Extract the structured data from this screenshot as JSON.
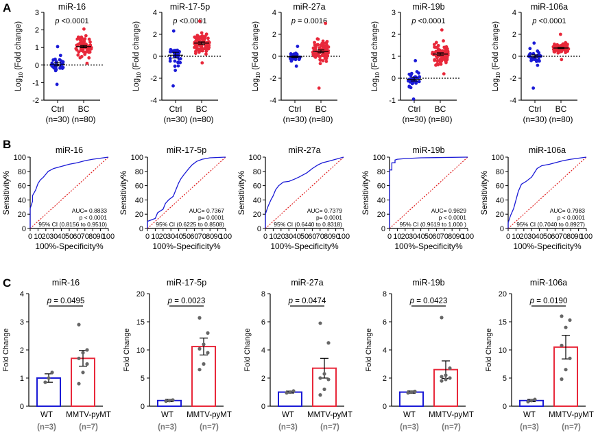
{
  "panels": {
    "A": "A",
    "B": "B",
    "C": "C"
  },
  "colors": {
    "blue": "#1a1ad6",
    "red": "#e8283a",
    "gray": "#666666",
    "refline": "#e02020",
    "axis": "#000000"
  },
  "chart_data": [
    {
      "type": "scatter",
      "panel": "A",
      "title": "miR-16",
      "ylabel": "Log10 (Fold change)",
      "ylim": [
        -2,
        3
      ],
      "yticks": [
        -2,
        -1,
        0,
        1,
        2,
        3
      ],
      "categories": [
        "Ctrl",
        "BC"
      ],
      "category_n": [
        "(n=30)",
        "(n=80)"
      ],
      "p_label": "p",
      "p_value": "<0.0001",
      "groups": [
        {
          "name": "Ctrl",
          "n": 30,
          "mean": 0.05,
          "spread": 0.42,
          "min": -1.1,
          "max": 1.05
        },
        {
          "name": "BC",
          "n": 80,
          "mean": 1.05,
          "spread": 0.48,
          "min": 0.1,
          "max": 2.05
        }
      ]
    },
    {
      "type": "scatter",
      "panel": "A",
      "title": "miR-17-5p",
      "ylabel": "Log10 (Fold change)",
      "ylim": [
        -4,
        4
      ],
      "yticks": [
        -4,
        -2,
        0,
        2,
        4
      ],
      "categories": [
        "Ctrl",
        "BC"
      ],
      "category_n": [
        "(n=30)",
        "(n=80)"
      ],
      "p_label": "p",
      "p_value": "<0.0001",
      "groups": [
        {
          "name": "Ctrl",
          "n": 30,
          "mean": 0.1,
          "spread": 1.2,
          "min": -2.7,
          "max": 2.3
        },
        {
          "name": "BC",
          "n": 80,
          "mean": 1.2,
          "spread": 0.85,
          "min": -0.6,
          "max": 3.2
        }
      ]
    },
    {
      "type": "scatter",
      "panel": "A",
      "title": "miR-27a",
      "ylabel": "Log10 (Fold change)",
      "ylim": [
        -4,
        4
      ],
      "yticks": [
        -4,
        -2,
        0,
        2,
        4
      ],
      "categories": [
        "Ctrl",
        "BC"
      ],
      "category_n": [
        "(n=30)",
        "(n=80)"
      ],
      "p_label": "p",
      "p_value": "= 0.0016",
      "groups": [
        {
          "name": "Ctrl",
          "n": 30,
          "mean": -0.05,
          "spread": 0.35,
          "min": -0.9,
          "max": 0.9
        },
        {
          "name": "BC",
          "n": 80,
          "mean": 0.45,
          "spread": 0.95,
          "min": -2.9,
          "max": 3.0
        }
      ]
    },
    {
      "type": "scatter",
      "panel": "A",
      "title": "miR-19b",
      "ylabel": "Log10 (Fold change)",
      "ylim": [
        -1,
        3
      ],
      "yticks": [
        -1,
        0,
        1,
        2,
        3
      ],
      "categories": [
        "Ctrl",
        "BC"
      ],
      "category_n": [
        "(n=30)",
        "(n=80)"
      ],
      "p_label": "p",
      "p_value": "<0.0001",
      "groups": [
        {
          "name": "Ctrl",
          "n": 30,
          "mean": -0.05,
          "spread": 0.35,
          "min": -0.95,
          "max": 0.8
        },
        {
          "name": "BC",
          "n": 80,
          "mean": 1.1,
          "spread": 0.45,
          "min": 0.2,
          "max": 2.2
        }
      ]
    },
    {
      "type": "scatter",
      "panel": "A",
      "title": "miR-106a",
      "ylabel": "Log10 (Fold change)",
      "ylim": [
        -4,
        4
      ],
      "yticks": [
        -4,
        -2,
        0,
        2,
        4
      ],
      "categories": [
        "Ctrl",
        "BC"
      ],
      "category_n": [
        "(n=30)",
        "(n=80)"
      ],
      "p_label": "p",
      "p_value": "<0.0001",
      "groups": [
        {
          "name": "Ctrl",
          "n": 30,
          "mean": 0.0,
          "spread": 0.6,
          "min": -2.9,
          "max": 1.2
        },
        {
          "name": "BC",
          "n": 80,
          "mean": 0.75,
          "spread": 0.4,
          "min": -0.3,
          "max": 2.0
        }
      ]
    },
    {
      "type": "line",
      "panel": "B",
      "title": "miR-16",
      "xlabel": "100%-Specificity%",
      "ylabel": "Sensitivity%",
      "xlim": [
        0,
        100
      ],
      "ylim": [
        0,
        100
      ],
      "xticks": [
        0,
        10,
        20,
        30,
        40,
        50,
        60,
        70,
        80,
        90,
        100
      ],
      "yticks": [
        0,
        20,
        40,
        60,
        80,
        100
      ],
      "auc": "AUC= 0.8833",
      "p": "p < 0.0001",
      "ci": "95% CI (0.8156 to 0.9510)",
      "roc": [
        [
          0,
          0
        ],
        [
          0,
          28
        ],
        [
          3,
          38
        ],
        [
          3,
          46
        ],
        [
          7,
          54
        ],
        [
          10,
          63
        ],
        [
          13,
          68
        ],
        [
          17,
          72
        ],
        [
          20,
          76
        ],
        [
          23,
          80
        ],
        [
          30,
          84
        ],
        [
          40,
          87
        ],
        [
          50,
          90
        ],
        [
          60,
          92
        ],
        [
          70,
          95
        ],
        [
          80,
          97
        ],
        [
          100,
          100
        ]
      ]
    },
    {
      "type": "line",
      "panel": "B",
      "title": "miR-17-5p",
      "xlabel": "100%-Specificity%",
      "ylabel": "Sensitivity%",
      "xlim": [
        0,
        100
      ],
      "ylim": [
        0,
        100
      ],
      "xticks": [
        0,
        10,
        20,
        30,
        40,
        50,
        60,
        70,
        80,
        90,
        100
      ],
      "yticks": [
        0,
        20,
        40,
        60,
        80,
        100
      ],
      "auc": "AUC= 0.7367",
      "p": "p= 0.0001",
      "ci": "95% CI (0.6225 to 0.8508)",
      "roc": [
        [
          0,
          0
        ],
        [
          0,
          10
        ],
        [
          10,
          14
        ],
        [
          13,
          22
        ],
        [
          20,
          27
        ],
        [
          23,
          35
        ],
        [
          27,
          40
        ],
        [
          33,
          45
        ],
        [
          37,
          56
        ],
        [
          40,
          64
        ],
        [
          43,
          70
        ],
        [
          47,
          76
        ],
        [
          53,
          84
        ],
        [
          57,
          89
        ],
        [
          63,
          94
        ],
        [
          70,
          97
        ],
        [
          80,
          99
        ],
        [
          100,
          100
        ]
      ]
    },
    {
      "type": "line",
      "panel": "B",
      "title": "miR-27a",
      "xlabel": "100%-Specificity%",
      "ylabel": "Sensitivity%",
      "xlim": [
        0,
        100
      ],
      "ylim": [
        0,
        100
      ],
      "xticks": [
        0,
        10,
        20,
        30,
        40,
        50,
        60,
        70,
        80,
        90,
        100
      ],
      "yticks": [
        0,
        20,
        40,
        60,
        80,
        100
      ],
      "auc": "AUC= 0.7379",
      "p": "p= 0.0001",
      "ci": "95% CI (0.6440 to 0.8318)",
      "roc": [
        [
          0,
          0
        ],
        [
          0,
          20
        ],
        [
          3,
          30
        ],
        [
          7,
          40
        ],
        [
          10,
          46
        ],
        [
          13,
          54
        ],
        [
          17,
          60
        ],
        [
          23,
          65
        ],
        [
          30,
          66
        ],
        [
          37,
          69
        ],
        [
          43,
          72
        ],
        [
          53,
          78
        ],
        [
          60,
          84
        ],
        [
          67,
          89
        ],
        [
          73,
          92
        ],
        [
          80,
          94
        ],
        [
          90,
          97
        ],
        [
          100,
          100
        ]
      ]
    },
    {
      "type": "line",
      "panel": "B",
      "title": "miR-19b",
      "xlabel": "100%-Specificity%",
      "ylabel": "Sensitivity%",
      "xlim": [
        0,
        100
      ],
      "ylim": [
        0,
        100
      ],
      "xticks": [
        0,
        10,
        20,
        30,
        40,
        50,
        60,
        70,
        80,
        90,
        100
      ],
      "yticks": [
        0,
        20,
        40,
        60,
        80,
        100
      ],
      "auc": "AUC= 0.9829",
      "p": "p < 0.0001",
      "ci": "95% CI (0.9619 to 1.000 )",
      "roc": [
        [
          0,
          0
        ],
        [
          0,
          82
        ],
        [
          3,
          82
        ],
        [
          3,
          92
        ],
        [
          7,
          92
        ],
        [
          7,
          96
        ],
        [
          10,
          97
        ],
        [
          20,
          98
        ],
        [
          40,
          99
        ],
        [
          100,
          100
        ]
      ]
    },
    {
      "type": "line",
      "panel": "B",
      "title": "miR-106a",
      "xlabel": "100%-Specificity%",
      "ylabel": "Sensitivity%",
      "xlim": [
        0,
        100
      ],
      "ylim": [
        0,
        100
      ],
      "xticks": [
        0,
        10,
        20,
        30,
        40,
        50,
        60,
        70,
        80,
        90,
        100
      ],
      "yticks": [
        0,
        20,
        40,
        60,
        80,
        100
      ],
      "auc": "AUC= 0.7983",
      "p": "p < 0.0001",
      "ci": "95% CI (0.7040 to 0.8927)",
      "roc": [
        [
          0,
          0
        ],
        [
          0,
          8
        ],
        [
          3,
          18
        ],
        [
          7,
          28
        ],
        [
          10,
          40
        ],
        [
          13,
          52
        ],
        [
          17,
          62
        ],
        [
          23,
          66
        ],
        [
          30,
          72
        ],
        [
          37,
          84
        ],
        [
          43,
          88
        ],
        [
          53,
          90
        ],
        [
          60,
          92
        ],
        [
          70,
          95
        ],
        [
          80,
          97
        ],
        [
          100,
          100
        ]
      ]
    },
    {
      "type": "bar",
      "panel": "C",
      "title": "miR-16",
      "ylabel": "Fold Change",
      "ylim": [
        0,
        4
      ],
      "yticks": [
        0,
        1,
        2,
        3,
        4
      ],
      "categories": [
        "WT",
        "MMTV-pyMT"
      ],
      "category_n": [
        "(n=3)",
        "(n=7)"
      ],
      "values": [
        1.0,
        1.7
      ],
      "sem": [
        0.15,
        0.28
      ],
      "points": [
        [
          0.85,
          1.0,
          1.2
        ],
        [
          0.8,
          1.2,
          1.5,
          1.7,
          1.9,
          2.0,
          2.9
        ]
      ],
      "p_label": "p",
      "p_value": "= 0.0495"
    },
    {
      "type": "bar",
      "panel": "C",
      "title": "miR-17-5p",
      "ylabel": "Fold Change",
      "ylim": [
        0,
        20
      ],
      "yticks": [
        0,
        5,
        10,
        15,
        20
      ],
      "categories": [
        "WT",
        "MMTV-pyMT"
      ],
      "category_n": [
        "(n=3)",
        "(n=7)"
      ],
      "values": [
        1.0,
        10.6
      ],
      "sem": [
        0.2,
        1.5
      ],
      "points": [
        [
          0.9,
          1.0,
          1.1
        ],
        [
          6.5,
          7.5,
          9.5,
          10.2,
          11.0,
          13.0,
          15.7
        ]
      ],
      "p_label": "p",
      "p_value": "= 0.0023"
    },
    {
      "type": "bar",
      "panel": "C",
      "title": "miR-27a",
      "ylabel": "Fold Change",
      "ylim": [
        0,
        8
      ],
      "yticks": [
        0,
        2,
        4,
        6,
        8
      ],
      "categories": [
        "WT",
        "MMTV-pyMT"
      ],
      "category_n": [
        "(n=3)",
        "(n=7)"
      ],
      "values": [
        1.0,
        2.7
      ],
      "sem": [
        0.07,
        0.7
      ],
      "points": [
        [
          0.95,
          1.0,
          1.08
        ],
        [
          0.8,
          1.2,
          1.9,
          2.0,
          2.3,
          4.5,
          5.9
        ]
      ],
      "p_label": "p",
      "p_value": "= 0.0474"
    },
    {
      "type": "bar",
      "panel": "C",
      "title": "miR-19b",
      "ylabel": "Fold Change",
      "ylim": [
        0,
        8
      ],
      "yticks": [
        0,
        2,
        4,
        6,
        8
      ],
      "categories": [
        "WT",
        "MMTV-pyMT"
      ],
      "category_n": [
        "(n=3)",
        "(n=7)"
      ],
      "values": [
        1.0,
        2.6
      ],
      "sem": [
        0.08,
        0.62
      ],
      "points": [
        [
          0.95,
          1.0,
          1.05
        ],
        [
          1.8,
          1.9,
          2.0,
          2.1,
          2.2,
          2.7,
          6.3
        ]
      ],
      "p_label": "p",
      "p_value": "= 0.0423"
    },
    {
      "type": "bar",
      "panel": "C",
      "title": "miR-106a",
      "ylabel": "Fold Change",
      "ylim": [
        0,
        20
      ],
      "yticks": [
        0,
        5,
        10,
        15,
        20
      ],
      "categories": [
        "WT",
        "MMTV-pyMT"
      ],
      "category_n": [
        "(n=3)",
        "(n=7)"
      ],
      "values": [
        1.0,
        10.5
      ],
      "sem": [
        0.2,
        2.1
      ],
      "points": [
        [
          0.8,
          1.0,
          1.2
        ],
        [
          4.8,
          6.5,
          8.5,
          10.8,
          14.0,
          15.3,
          16.0
        ]
      ],
      "p_label": "p",
      "p_value": "= 0.0190"
    }
  ]
}
